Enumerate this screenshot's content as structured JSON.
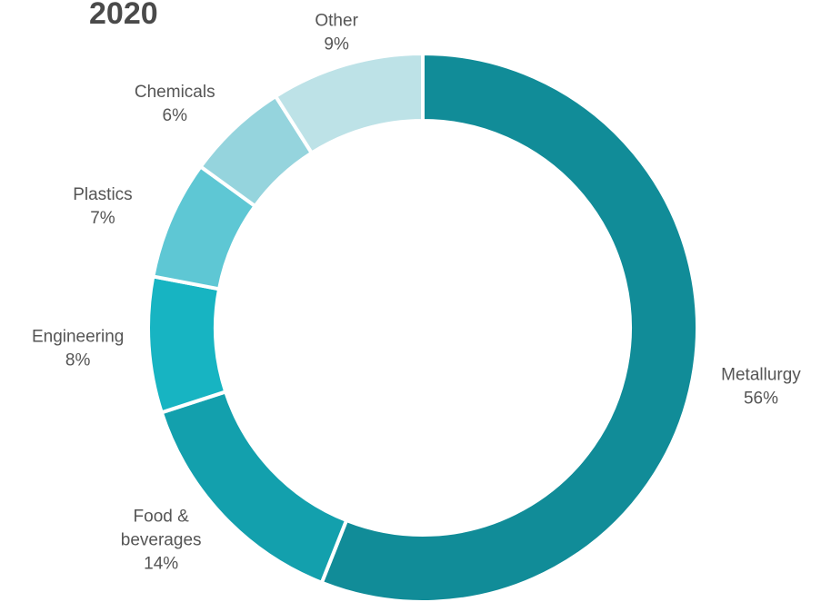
{
  "chart_data": {
    "type": "pie",
    "variant": "donut",
    "title": "2020",
    "slices": [
      {
        "label": [
          "Metallurgy"
        ],
        "value": 56,
        "pct_label": "56%",
        "color": "#118c98"
      },
      {
        "label": [
          "Food &",
          "beverages"
        ],
        "value": 14,
        "pct_label": "14%",
        "color": "#13a0ad"
      },
      {
        "label": [
          "Engineering"
        ],
        "value": 8,
        "pct_label": "8%",
        "color": "#17b4c2"
      },
      {
        "label": [
          "Plastics"
        ],
        "value": 7,
        "pct_label": "7%",
        "color": "#5ec7d4"
      },
      {
        "label": [
          "Chemicals"
        ],
        "value": 6,
        "pct_label": "6%",
        "color": "#95d4dd"
      },
      {
        "label": [
          "Other"
        ],
        "value": 9,
        "pct_label": "9%",
        "color": "#bde2e7"
      }
    ],
    "start": "top",
    "direction": "clockwise"
  }
}
